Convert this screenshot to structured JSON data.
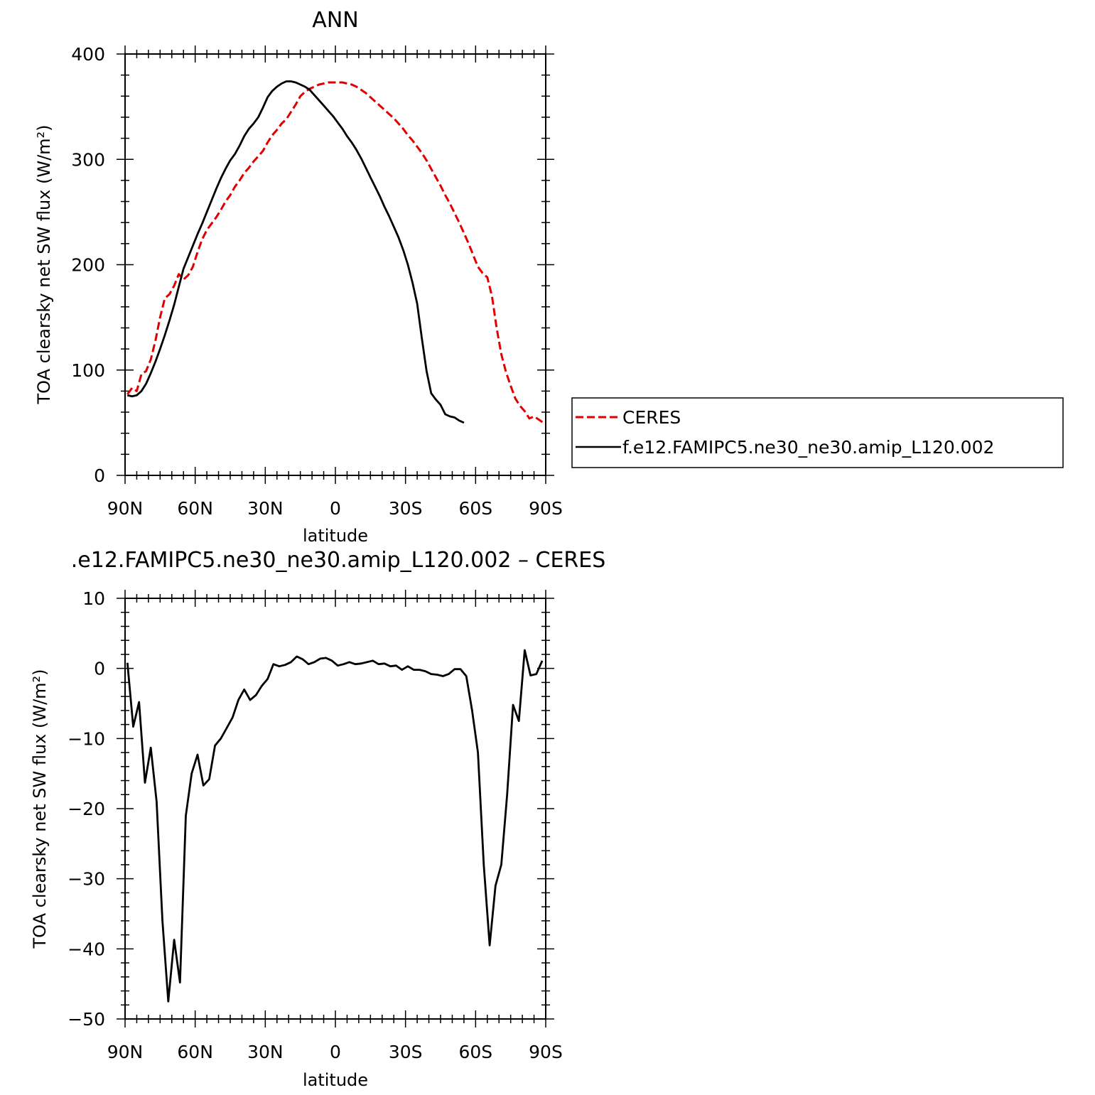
{
  "chart_data": [
    {
      "type": "line",
      "title": "ANN",
      "xlabel": "latitude",
      "ylabel": "TOA clearsky net SW flux (W/m²)",
      "x_ticks": [
        "90N",
        "60N",
        "30N",
        "0",
        "30S",
        "60S",
        "90S"
      ],
      "x_tick_values": [
        90,
        60,
        30,
        0,
        -30,
        -60,
        -90
      ],
      "xlim": [
        90,
        -90
      ],
      "ylim": [
        0,
        400
      ],
      "y_ticks": [
        "0",
        "100",
        "200",
        "300",
        "400"
      ],
      "y_tick_values": [
        0,
        100,
        200,
        300,
        400
      ],
      "legend": {
        "placement": "right",
        "entries": [
          "CERES",
          "f.e12.FAMIPC5.ne30_ne30.amip_L120.002"
        ]
      },
      "series": [
        {
          "name": "CERES",
          "color": "#e00000",
          "dash": true,
          "points": [
            [
              89,
              77
            ],
            [
              87,
              83
            ],
            [
              85,
              80
            ],
            [
              83,
              96
            ],
            [
              81,
              99
            ],
            [
              79,
              110
            ],
            [
              77,
              128
            ],
            [
              75,
              150
            ],
            [
              73,
              168
            ],
            [
              71,
              172
            ],
            [
              69,
              180
            ],
            [
              67,
              191
            ],
            [
              65,
              186
            ],
            [
              63,
              190
            ],
            [
              61,
              198
            ],
            [
              59,
              212
            ],
            [
              57,
              224
            ],
            [
              55,
              233
            ],
            [
              53,
              239
            ],
            [
              51,
              245
            ],
            [
              49,
              252
            ],
            [
              47,
              260
            ],
            [
              45,
              266
            ],
            [
              43,
              274
            ],
            [
              41,
              280
            ],
            [
              39,
              287
            ],
            [
              37,
              292
            ],
            [
              35,
              298
            ],
            [
              33,
              303
            ],
            [
              31,
              308
            ],
            [
              29,
              316
            ],
            [
              27,
              323
            ],
            [
              25,
              328
            ],
            [
              23,
              334
            ],
            [
              21,
              338
            ],
            [
              19,
              345
            ],
            [
              17,
              352
            ],
            [
              15,
              360
            ],
            [
              13,
              364
            ],
            [
              11,
              367
            ],
            [
              9,
              369
            ],
            [
              7,
              371
            ],
            [
              5,
              372
            ],
            [
              3,
              373
            ],
            [
              1,
              373
            ],
            [
              -1,
              373
            ],
            [
              -3,
              373
            ],
            [
              -5,
              372
            ],
            [
              -7,
              371
            ],
            [
              -9,
              369
            ],
            [
              -11,
              366
            ],
            [
              -13,
              363
            ],
            [
              -15,
              359
            ],
            [
              -17,
              355
            ],
            [
              -19,
              351
            ],
            [
              -21,
              347
            ],
            [
              -23,
              343
            ],
            [
              -25,
              339
            ],
            [
              -27,
              334
            ],
            [
              -29,
              329
            ],
            [
              -31,
              323
            ],
            [
              -33,
              318
            ],
            [
              -35,
              312
            ],
            [
              -37,
              306
            ],
            [
              -39,
              299
            ],
            [
              -41,
              291
            ],
            [
              -43,
              283
            ],
            [
              -45,
              275
            ],
            [
              -47,
              266
            ],
            [
              -49,
              258
            ],
            [
              -51,
              249
            ],
            [
              -53,
              240
            ],
            [
              -55,
              230
            ],
            [
              -57,
              220
            ],
            [
              -59,
              209
            ],
            [
              -61,
              198
            ],
            [
              -63,
              192
            ],
            [
              -65,
              188
            ],
            [
              -67,
              170
            ],
            [
              -69,
              140
            ],
            [
              -71,
              115
            ],
            [
              -73,
              98
            ],
            [
              -75,
              85
            ],
            [
              -77,
              73
            ],
            [
              -79,
              66
            ],
            [
              -81,
              61
            ],
            [
              -83,
              54
            ],
            [
              -85,
              56
            ],
            [
              -87,
              53
            ],
            [
              -89,
              50
            ]
          ]
        },
        {
          "name": "f.e12.FAMIPC5.ne30_ne30.amip_L120.002",
          "color": "#000000",
          "dash": false,
          "points": [
            [
              89,
              76
            ],
            [
              87,
              75
            ],
            [
              85,
              76
            ],
            [
              83,
              80
            ],
            [
              81,
              87
            ],
            [
              79,
              97
            ],
            [
              77,
              108
            ],
            [
              75,
              120
            ],
            [
              73,
              133
            ],
            [
              71,
              147
            ],
            [
              69,
              162
            ],
            [
              67,
              179
            ],
            [
              65,
              196
            ],
            [
              63,
              207
            ],
            [
              61,
              218
            ],
            [
              59,
              229
            ],
            [
              57,
              239
            ],
            [
              55,
              250
            ],
            [
              53,
              261
            ],
            [
              51,
              272
            ],
            [
              49,
              282
            ],
            [
              47,
              291
            ],
            [
              45,
              299
            ],
            [
              43,
              305
            ],
            [
              41,
              313
            ],
            [
              39,
              322
            ],
            [
              37,
              329
            ],
            [
              35,
              334
            ],
            [
              33,
              340
            ],
            [
              31,
              349
            ],
            [
              29,
              359
            ],
            [
              27,
              365
            ],
            [
              25,
              369
            ],
            [
              23,
              372
            ],
            [
              21,
              374
            ],
            [
              19,
              374
            ],
            [
              17,
              373
            ],
            [
              15,
              371
            ],
            [
              13,
              369
            ],
            [
              11,
              366
            ],
            [
              9,
              361
            ],
            [
              7,
              356
            ],
            [
              5,
              351
            ],
            [
              3,
              346
            ],
            [
              1,
              341
            ],
            [
              -1,
              335
            ],
            [
              -3,
              329
            ],
            [
              -5,
              322
            ],
            [
              -7,
              316
            ],
            [
              -9,
              309
            ],
            [
              -11,
              301
            ],
            [
              -13,
              292
            ],
            [
              -15,
              283
            ],
            [
              -17,
              274
            ],
            [
              -19,
              265
            ],
            [
              -21,
              255
            ],
            [
              -23,
              246
            ],
            [
              -25,
              236
            ],
            [
              -27,
              226
            ],
            [
              -29,
              214
            ],
            [
              -31,
              200
            ],
            [
              -33,
              183
            ],
            [
              -35,
              163
            ],
            [
              -37,
              130
            ],
            [
              -39,
              99
            ],
            [
              -41,
              78
            ],
            [
              -43,
              72
            ],
            [
              -45,
              67
            ],
            [
              -47,
              58
            ],
            [
              -49,
              56
            ],
            [
              -51,
              55
            ],
            [
              -53,
              52
            ],
            [
              -55,
              50
            ]
          ]
        }
      ]
    },
    {
      "type": "line",
      "title": ".e12.FAMIPC5.ne30_ne30.amip_L120.002 – CERES",
      "xlabel": "latitude",
      "ylabel": "TOA clearsky net SW flux (W/m²)",
      "x_ticks": [
        "90N",
        "60N",
        "30N",
        "0",
        "30S",
        "60S",
        "90S"
      ],
      "x_tick_values": [
        90,
        60,
        30,
        0,
        -30,
        -60,
        -90
      ],
      "xlim": [
        90,
        -90
      ],
      "ylim": [
        -50,
        10
      ],
      "y_ticks": [
        "−50",
        "−40",
        "−30",
        "−20",
        "−10",
        "0",
        "10"
      ],
      "y_tick_values": [
        -50,
        -40,
        -30,
        -20,
        -10,
        0,
        10
      ],
      "series": [
        {
          "color": "#000000",
          "dash": false,
          "points": [
            [
              89,
              0.8
            ],
            [
              86.5,
              -8.3
            ],
            [
              84,
              -4.8
            ],
            [
              81.5,
              -16.3
            ],
            [
              79,
              -11.3
            ],
            [
              76.5,
              -19
            ],
            [
              74,
              -36
            ],
            [
              71.5,
              -47.5
            ],
            [
              69,
              -38.7
            ],
            [
              66.5,
              -44.8
            ],
            [
              64,
              -21
            ],
            [
              61.5,
              -15
            ],
            [
              59,
              -12.3
            ],
            [
              56.5,
              -16.7
            ],
            [
              54,
              -15.8
            ],
            [
              51.5,
              -11
            ],
            [
              49,
              -10
            ],
            [
              46.5,
              -8.5
            ],
            [
              44,
              -7
            ],
            [
              41.5,
              -4.5
            ],
            [
              39,
              -3
            ],
            [
              36.5,
              -4.5
            ],
            [
              34,
              -3.8
            ],
            [
              31.5,
              -2.5
            ],
            [
              29,
              -1.5
            ],
            [
              26.5,
              0.6
            ],
            [
              24,
              0.3
            ],
            [
              21.5,
              0.5
            ],
            [
              19,
              0.9
            ],
            [
              16.5,
              1.7
            ],
            [
              14,
              1.3
            ],
            [
              11.5,
              0.6
            ],
            [
              9,
              0.9
            ],
            [
              6.5,
              1.4
            ],
            [
              4,
              1.5
            ],
            [
              1.5,
              1.1
            ],
            [
              -1,
              0.4
            ],
            [
              -3.5,
              0.6
            ],
            [
              -6,
              0.9
            ],
            [
              -8.5,
              0.6
            ],
            [
              -11,
              0.7
            ],
            [
              -13.5,
              0.9
            ],
            [
              -16,
              1.1
            ],
            [
              -18.5,
              0.6
            ],
            [
              -21,
              0.7
            ],
            [
              -23.5,
              0.3
            ],
            [
              -26,
              0.4
            ],
            [
              -28.5,
              -0.2
            ],
            [
              -31,
              0.3
            ],
            [
              -33.5,
              -0.2
            ],
            [
              -36,
              -0.2
            ],
            [
              -38.5,
              -0.4
            ],
            [
              -41,
              -0.8
            ],
            [
              -43.5,
              -0.9
            ],
            [
              -46,
              -1.1
            ],
            [
              -48.5,
              -0.8
            ],
            [
              -51,
              -0.1
            ],
            [
              -53.5,
              -0.1
            ],
            [
              -56,
              -1.1
            ],
            [
              -58.5,
              -6
            ],
            [
              -61,
              -12
            ],
            [
              -63.5,
              -28
            ],
            [
              -66,
              -39.5
            ],
            [
              -68.5,
              -31
            ],
            [
              -71,
              -28
            ],
            [
              -73.5,
              -18
            ],
            [
              -76,
              -5.2
            ],
            [
              -78.5,
              -7.5
            ],
            [
              -81,
              2.6
            ],
            [
              -83.5,
              -1
            ],
            [
              -86,
              -0.8
            ],
            [
              -88.5,
              1.1
            ]
          ]
        }
      ]
    }
  ]
}
